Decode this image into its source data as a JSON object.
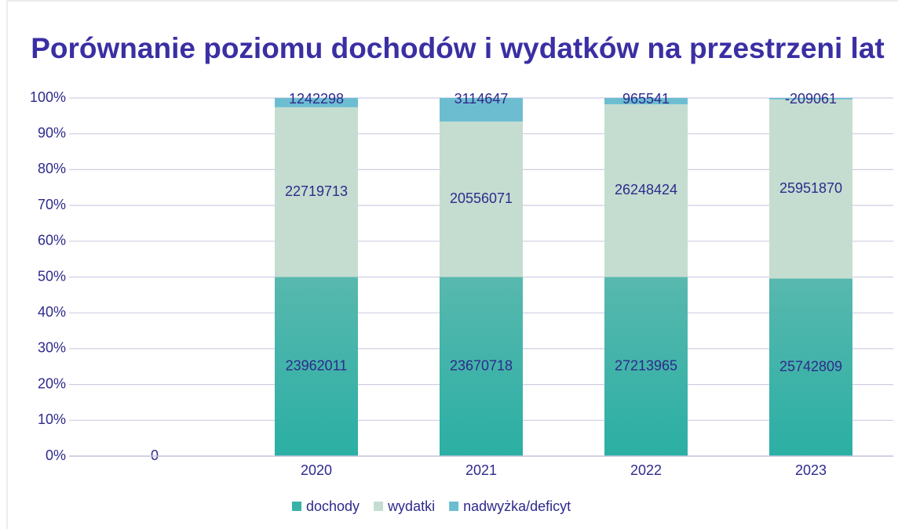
{
  "chart_data": {
    "type": "bar",
    "stacking": "percent",
    "title": "Porównanie poziomu dochodów i wydatków na przestrzeni lat",
    "categories": [
      null,
      "2020",
      "2021",
      "2022",
      "2023"
    ],
    "series": [
      {
        "name": "dochody",
        "color": "#38b2a7",
        "values": [
          0,
          23962011,
          23670718,
          27213965,
          25742809
        ]
      },
      {
        "name": "wydatki",
        "color": "#c4ddd0",
        "values": [
          0,
          22719713,
          20556071,
          26248424,
          25951870
        ]
      },
      {
        "name": "nadwyżka/deficyt",
        "color": "#6dbdd1",
        "values": [
          0,
          1242298,
          3114647,
          965541,
          -209061
        ]
      }
    ],
    "ylim": [
      0,
      100
    ],
    "yticks": [
      {
        "value": 0,
        "label": "0%"
      },
      {
        "value": 10,
        "label": "10%"
      },
      {
        "value": 20,
        "label": "20%"
      },
      {
        "value": 30,
        "label": "30%"
      },
      {
        "value": 40,
        "label": "40%"
      },
      {
        "value": 50,
        "label": "50%"
      },
      {
        "value": 60,
        "label": "60%"
      },
      {
        "value": 70,
        "label": "70%"
      },
      {
        "value": 80,
        "label": "80%"
      },
      {
        "value": 90,
        "label": "90%"
      },
      {
        "value": 100,
        "label": "100%"
      }
    ],
    "grid": true,
    "legend": "bottom"
  }
}
